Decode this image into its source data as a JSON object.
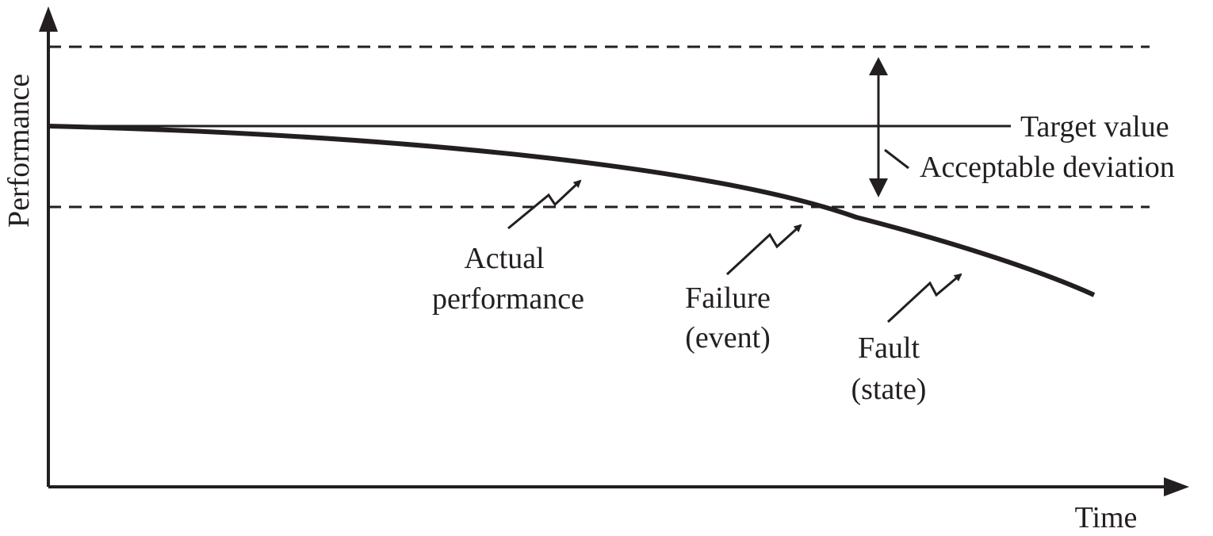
{
  "axes": {
    "y_label": "Performance",
    "x_label": "Time"
  },
  "annotations": {
    "target_value": "Target value",
    "acceptable_deviation": "Acceptable deviation",
    "actual_performance": [
      "Actual",
      "performance"
    ],
    "failure": [
      "Failure",
      "(event)"
    ],
    "fault": [
      "Fault",
      "(state)"
    ]
  },
  "colors": {
    "ink": "#231f20",
    "background": "#ffffff"
  }
}
